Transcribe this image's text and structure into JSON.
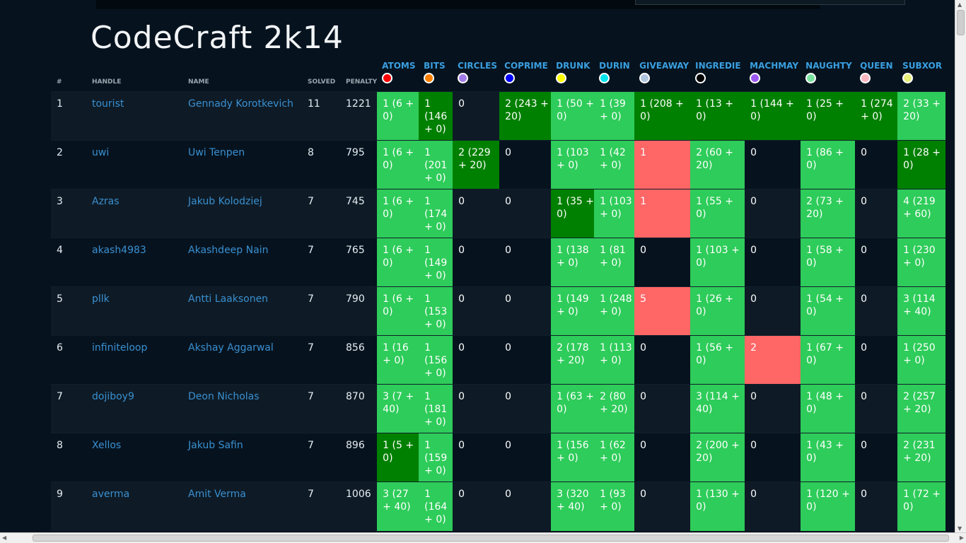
{
  "title": "CodeCraft 2k14",
  "headers": {
    "rank": "#",
    "handle": "HANDLE",
    "name": "NAME",
    "solved": "SOLVED",
    "penalty": "PENALTY"
  },
  "problems": [
    {
      "name": "ATOMS",
      "color": "#ff0000"
    },
    {
      "name": "BITS",
      "color": "#ff8000"
    },
    {
      "name": "CIRCLES",
      "color": "#a07ce8"
    },
    {
      "name": "COPRIME",
      "color": "#0000ff"
    },
    {
      "name": "DRUNK",
      "color": "#ffff00"
    },
    {
      "name": "DURIN",
      "color": "#00e5ee"
    },
    {
      "name": "GIVEAWAY",
      "color": "#b0c4de"
    },
    {
      "name": "INGREDIE",
      "color": "#000000"
    },
    {
      "name": "MACHMAY",
      "color": "#9b59f0"
    },
    {
      "name": "NAUGHTY",
      "color": "#7be3a0"
    },
    {
      "name": "QUEEN",
      "color": "#ffb6c1"
    },
    {
      "name": "SUBXOR",
      "color": "#eaf07a"
    }
  ],
  "colors": {
    "solved": "#2ecc5a",
    "first_solve": "#008000",
    "failed": "#ff6666",
    "link": "#3a8fd0"
  },
  "rows": [
    {
      "rank": "1",
      "handle": "tourist",
      "name": "Gennady Korotkevich",
      "solved": "11",
      "penalty": "1221",
      "cells": [
        [
          "1 (6 + 0)",
          "l"
        ],
        [
          "1 (146 + 0)",
          "d"
        ],
        [
          "0",
          "n"
        ],
        [
          "2 (243 + 20)",
          "d"
        ],
        [
          "1 (50 + 0)",
          "l"
        ],
        [
          "1 (39 + 0)",
          "l"
        ],
        [
          "1 (208 + 0)",
          "d"
        ],
        [
          "1 (13 + 0)",
          "d"
        ],
        [
          "1 (144 + 0)",
          "d"
        ],
        [
          "1 (25 + 0)",
          "d"
        ],
        [
          "1 (274 + 0)",
          "d"
        ],
        [
          "2 (33 + 20)",
          "l"
        ]
      ]
    },
    {
      "rank": "2",
      "handle": "uwi",
      "name": "Uwi Tenpen",
      "solved": "8",
      "penalty": "795",
      "cells": [
        [
          "1 (6 + 0)",
          "l"
        ],
        [
          "1 (201 + 0)",
          "l"
        ],
        [
          "2 (229 + 20)",
          "d"
        ],
        [
          "0",
          "n"
        ],
        [
          "1 (103 + 0)",
          "l"
        ],
        [
          "1 (42 + 0)",
          "l"
        ],
        [
          "1",
          "r"
        ],
        [
          "2 (60 + 20)",
          "l"
        ],
        [
          "0",
          "n"
        ],
        [
          "1 (86 + 0)",
          "l"
        ],
        [
          "0",
          "n"
        ],
        [
          "1 (28 + 0)",
          "d"
        ]
      ]
    },
    {
      "rank": "3",
      "handle": "Azras",
      "name": "Jakub Kolodziej",
      "solved": "7",
      "penalty": "745",
      "cells": [
        [
          "1 (6 + 0)",
          "l"
        ],
        [
          "1 (174 + 0)",
          "l"
        ],
        [
          "0",
          "n"
        ],
        [
          "0",
          "n"
        ],
        [
          "1 (35 + 0)",
          "d"
        ],
        [
          "1 (103 + 0)",
          "l"
        ],
        [
          "1",
          "r"
        ],
        [
          "1 (55 + 0)",
          "l"
        ],
        [
          "0",
          "n"
        ],
        [
          "2 (73 + 20)",
          "l"
        ],
        [
          "0",
          "n"
        ],
        [
          "4 (219 + 60)",
          "l"
        ]
      ]
    },
    {
      "rank": "4",
      "handle": "akash4983",
      "name": "Akashdeep Nain",
      "solved": "7",
      "penalty": "765",
      "cells": [
        [
          "1 (6 + 0)",
          "l"
        ],
        [
          "1 (149 + 0)",
          "l"
        ],
        [
          "0",
          "n"
        ],
        [
          "0",
          "n"
        ],
        [
          "1 (138 + 0)",
          "l"
        ],
        [
          "1 (81 + 0)",
          "l"
        ],
        [
          "0",
          "n"
        ],
        [
          "1 (103 + 0)",
          "l"
        ],
        [
          "0",
          "n"
        ],
        [
          "1 (58 + 0)",
          "l"
        ],
        [
          "0",
          "n"
        ],
        [
          "1 (230 + 0)",
          "l"
        ]
      ]
    },
    {
      "rank": "5",
      "handle": "pllk",
      "name": "Antti Laaksonen",
      "solved": "7",
      "penalty": "790",
      "cells": [
        [
          "1 (6 + 0)",
          "l"
        ],
        [
          "1 (153 + 0)",
          "l"
        ],
        [
          "0",
          "n"
        ],
        [
          "0",
          "n"
        ],
        [
          "1 (149 + 0)",
          "l"
        ],
        [
          "1 (248 + 0)",
          "l"
        ],
        [
          "5",
          "r"
        ],
        [
          "1 (26 + 0)",
          "l"
        ],
        [
          "0",
          "n"
        ],
        [
          "1 (54 + 0)",
          "l"
        ],
        [
          "0",
          "n"
        ],
        [
          "3 (114 + 40)",
          "l"
        ]
      ]
    },
    {
      "rank": "6",
      "handle": "infiniteloop",
      "name": "Akshay Aggarwal",
      "solved": "7",
      "penalty": "856",
      "cells": [
        [
          "1 (16 + 0)",
          "l"
        ],
        [
          "1 (156 + 0)",
          "l"
        ],
        [
          "0",
          "n"
        ],
        [
          "0",
          "n"
        ],
        [
          "2 (178 + 20)",
          "l"
        ],
        [
          "1 (113 + 0)",
          "l"
        ],
        [
          "0",
          "n"
        ],
        [
          "1 (56 + 0)",
          "l"
        ],
        [
          "2",
          "r"
        ],
        [
          "1 (67 + 0)",
          "l"
        ],
        [
          "0",
          "n"
        ],
        [
          "1 (250 + 0)",
          "l"
        ]
      ]
    },
    {
      "rank": "7",
      "handle": "dojiboy9",
      "name": "Deon Nicholas",
      "solved": "7",
      "penalty": "870",
      "cells": [
        [
          "3 (7 + 40)",
          "l"
        ],
        [
          "1 (181 + 0)",
          "l"
        ],
        [
          "0",
          "n"
        ],
        [
          "0",
          "n"
        ],
        [
          "1 (63 + 0)",
          "l"
        ],
        [
          "2 (80 + 20)",
          "l"
        ],
        [
          "0",
          "n"
        ],
        [
          "3 (114 + 40)",
          "l"
        ],
        [
          "0",
          "n"
        ],
        [
          "1 (48 + 0)",
          "l"
        ],
        [
          "0",
          "n"
        ],
        [
          "2 (257 + 20)",
          "l"
        ]
      ]
    },
    {
      "rank": "8",
      "handle": "Xellos",
      "name": "Jakub Safin",
      "solved": "7",
      "penalty": "896",
      "cells": [
        [
          "1 (5 + 0)",
          "d"
        ],
        [
          "1 (159 + 0)",
          "l"
        ],
        [
          "0",
          "n"
        ],
        [
          "0",
          "n"
        ],
        [
          "1 (156 + 0)",
          "l"
        ],
        [
          "1 (62 + 0)",
          "l"
        ],
        [
          "0",
          "n"
        ],
        [
          "2 (200 + 20)",
          "l"
        ],
        [
          "0",
          "n"
        ],
        [
          "1 (43 + 0)",
          "l"
        ],
        [
          "0",
          "n"
        ],
        [
          "2 (231 + 20)",
          "l"
        ]
      ]
    },
    {
      "rank": "9",
      "handle": "averma",
      "name": "Amit Verma",
      "solved": "7",
      "penalty": "1006",
      "cells": [
        [
          "3 (27 + 40)",
          "l"
        ],
        [
          "1 (164 + 0)",
          "l"
        ],
        [
          "0",
          "n"
        ],
        [
          "0",
          "n"
        ],
        [
          "3 (320 + 40)",
          "l"
        ],
        [
          "1 (93 + 0)",
          "l"
        ],
        [
          "0",
          "n"
        ],
        [
          "1 (130 + 0)",
          "l"
        ],
        [
          "0",
          "n"
        ],
        [
          "1 (120 + 0)",
          "l"
        ],
        [
          "0",
          "n"
        ],
        [
          "1 (72 + 0)",
          "l"
        ]
      ]
    }
  ]
}
